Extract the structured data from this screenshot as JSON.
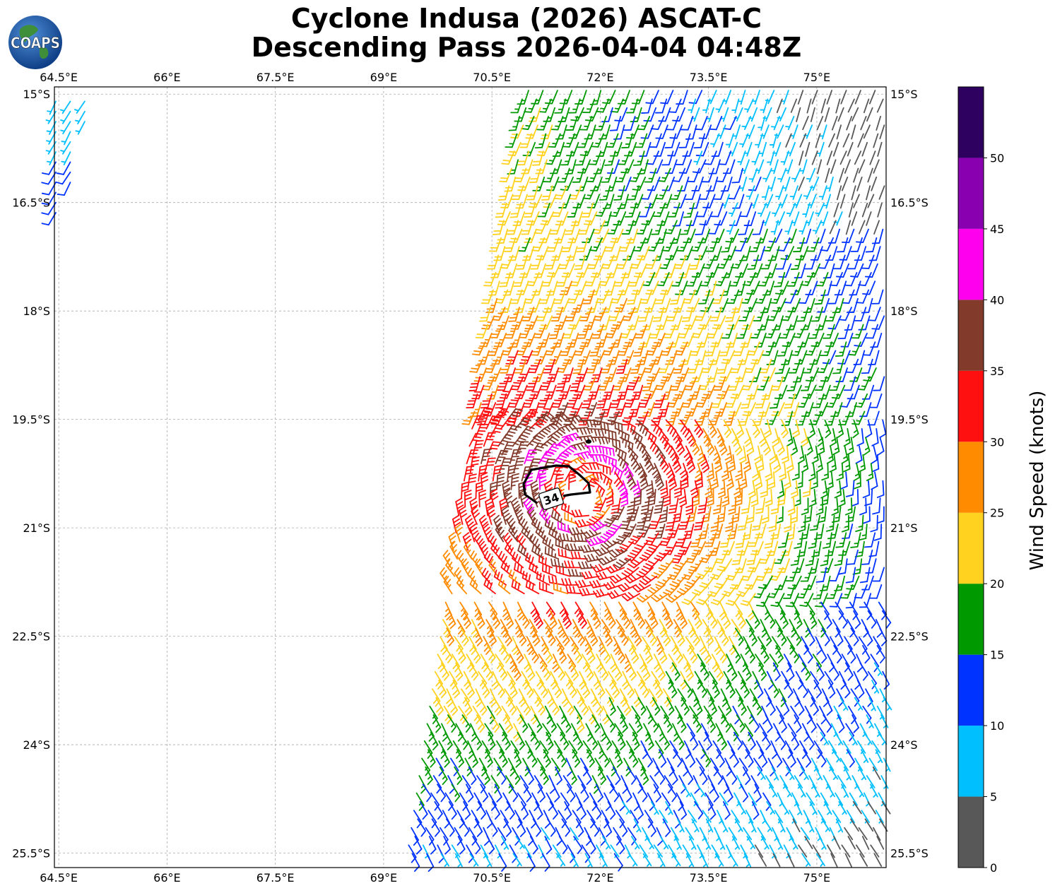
{
  "title": {
    "line1": "Cyclone Indusa (2026) ASCAT-C",
    "line2": "Descending Pass 2026-04-04 04:48Z"
  },
  "logo": {
    "text": "COAPS",
    "icon": "globe-icon"
  },
  "map": {
    "lon_labels": [
      "64.5°E",
      "66°E",
      "67.5°E",
      "69°E",
      "70.5°E",
      "72°E",
      "73.5°E",
      "75°E"
    ],
    "lon_values": [
      64.5,
      66,
      67.5,
      69,
      70.5,
      72,
      73.5,
      75
    ],
    "lat_labels": [
      "15°S",
      "16.5°S",
      "18°S",
      "19.5°S",
      "21°S",
      "22.5°S",
      "24°S",
      "25.5°S"
    ],
    "lat_values": [
      -15,
      -16.5,
      -18,
      -19.5,
      -21,
      -22.5,
      -24,
      -25.5
    ],
    "extent": {
      "lon": [
        64.44,
        75.96
      ],
      "lat": [
        -14.9,
        -25.7
      ]
    },
    "grid": true,
    "contour_label": "34",
    "contour_value_kt": 34
  },
  "colorbar": {
    "label": "Wind Speed (knots)",
    "bounds": [
      0,
      5,
      10,
      15,
      20,
      25,
      30,
      35,
      40,
      45,
      50,
      55
    ],
    "tick_labels": [
      "0",
      "5",
      "10",
      "15",
      "20",
      "25",
      "30",
      "35",
      "40",
      "45",
      "50"
    ],
    "colors": [
      "#585858",
      "#00bfff",
      "#0033ff",
      "#009900",
      "#ffd21f",
      "#ff8c00",
      "#ff1010",
      "#823a2a",
      "#ff00ee",
      "#8800b0",
      "#2e0060"
    ]
  },
  "swath": {
    "left_edge": [
      [
        71.0,
        -15.0
      ],
      [
        69.4,
        -25.5
      ]
    ],
    "right_edge": [
      [
        75.96,
        -15.0
      ],
      [
        75.96,
        -25.5
      ]
    ],
    "small_swath": [
      [
        64.44,
        -15.0
      ],
      [
        65.2,
        -16.7
      ]
    ],
    "storm_center": [
      71.8,
      -20.5
    ]
  }
}
